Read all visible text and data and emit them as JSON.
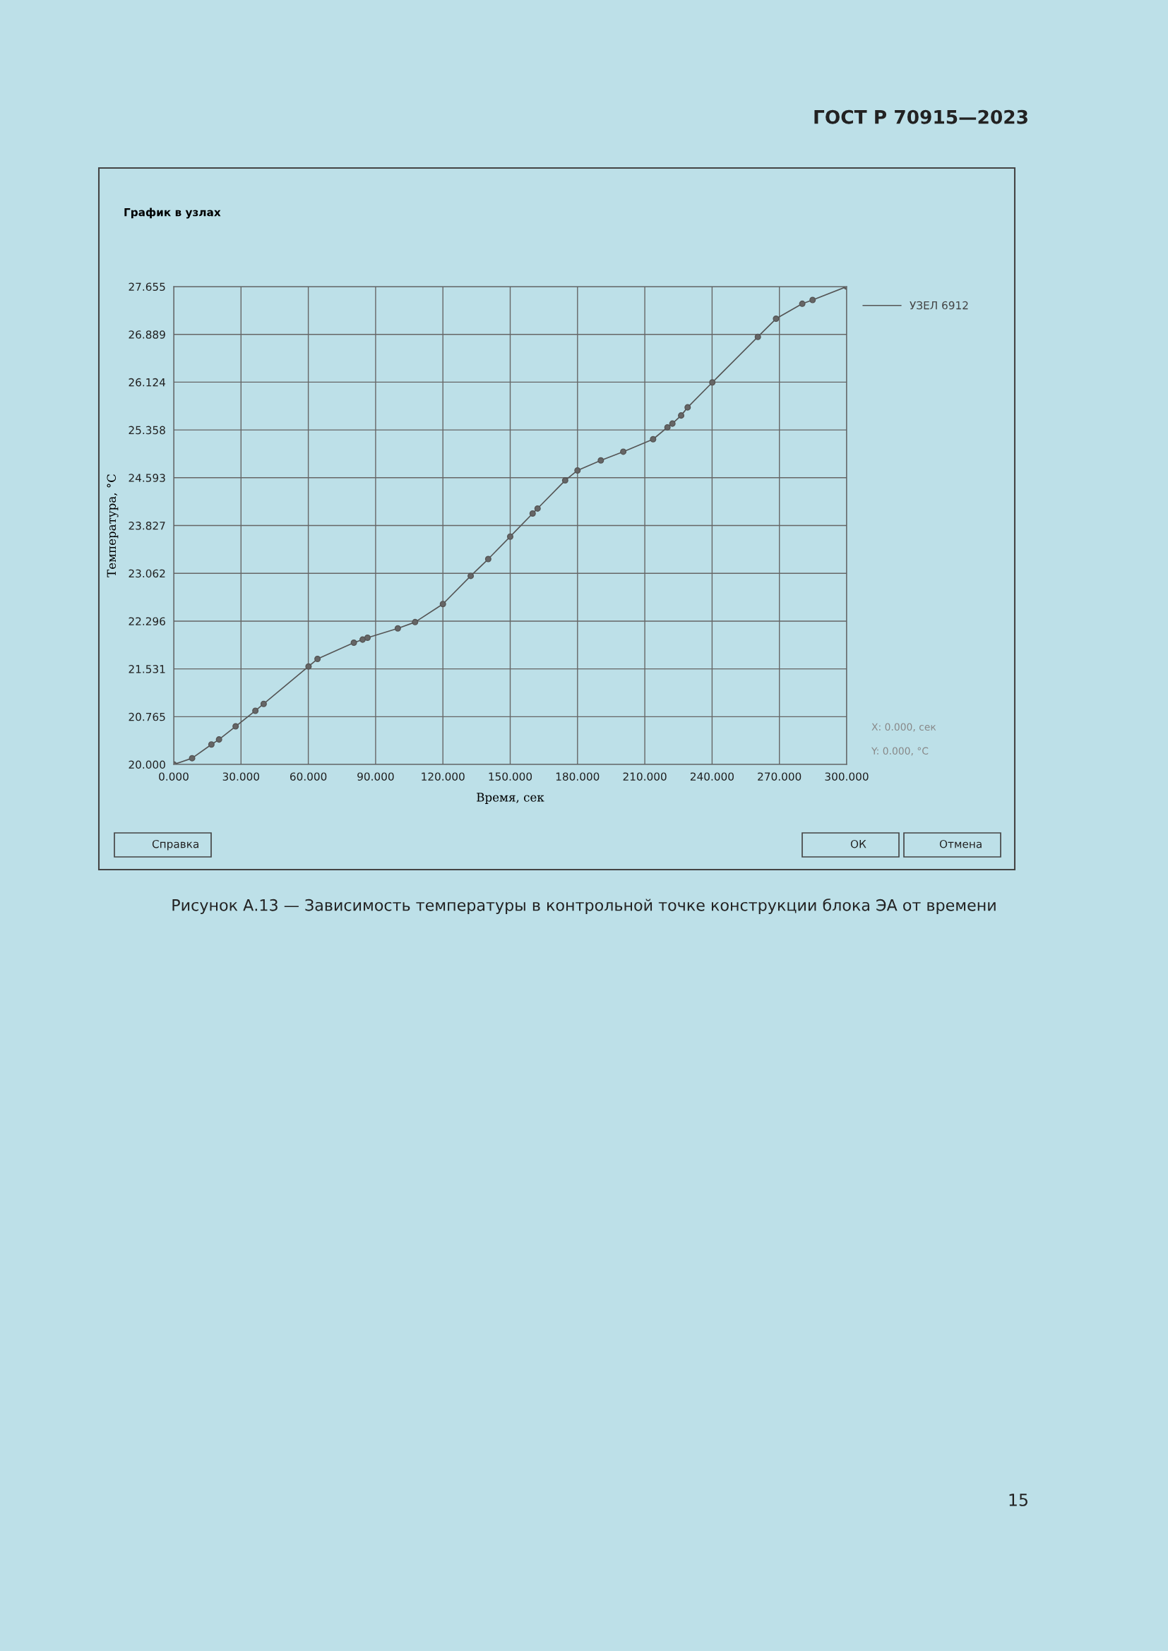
{
  "chart_data": {
    "type": "line",
    "subtitle": "График в узлах",
    "xlabel": "Время, сек",
    "ylabel": "Температура, °С",
    "x": [
      0,
      8.2,
      16.8,
      20.2,
      27.6,
      36.4,
      40.1,
      60.1,
      64.1,
      80.3,
      84.2,
      86.4,
      99.9,
      107.6,
      120.0,
      132.4,
      140.2,
      150.0,
      160.0,
      162.2,
      174.5,
      180.0,
      190.4,
      200.4,
      213.7,
      220.1,
      222.3,
      226.2,
      229.1,
      240.1,
      260.4,
      268.5,
      280.2,
      284.8,
      300
    ],
    "series": [
      {
        "name": "УЗЕЛ 6912",
        "color": "#555555",
        "values": [
          20.0,
          20.1,
          20.32,
          20.4,
          20.61,
          20.86,
          20.97,
          21.57,
          21.69,
          21.95,
          22.0,
          22.03,
          22.18,
          22.28,
          22.57,
          23.02,
          23.29,
          23.65,
          24.02,
          24.1,
          24.55,
          24.71,
          24.87,
          25.01,
          25.21,
          25.4,
          25.46,
          25.59,
          25.72,
          26.12,
          26.85,
          27.14,
          27.38,
          27.44,
          27.655
        ]
      }
    ],
    "xlim": [
      0,
      300
    ],
    "xticks": [
      {
        "value": 0,
        "label": "0.000"
      },
      {
        "value": 30,
        "label": "30.000"
      },
      {
        "value": 60,
        "label": "60.000"
      },
      {
        "value": 90,
        "label": "90.000"
      },
      {
        "value": 120,
        "label": "120.000"
      },
      {
        "value": 150,
        "label": "150.000"
      },
      {
        "value": 180,
        "label": "180.000"
      },
      {
        "value": 210,
        "label": "210.000"
      },
      {
        "value": 240,
        "label": "240.000"
      },
      {
        "value": 270,
        "label": "270.000"
      },
      {
        "value": 300,
        "label": "300.000"
      }
    ],
    "ylim": [
      20,
      27.655
    ],
    "yticks": [
      {
        "value": 20,
        "label": "20.000"
      },
      20.765,
      21.531,
      22.296,
      23.062,
      23.827,
      24.593,
      25.358,
      26.124,
      26.889,
      27.655
    ],
    "grid": true,
    "legend": "top right",
    "marker": "circle",
    "line_style": "solid",
    "annotations": [
      "ГОСТ Р 70915—2023",
      "X: 0.000, сек",
      "Y: 0.000, °C",
      "Справка",
      "ОК",
      "Отмена",
      "Рисунок А.13 — Зависимость температуры в контрольной точке конструкции блока ЭА от времени",
      "15"
    ]
  }
}
